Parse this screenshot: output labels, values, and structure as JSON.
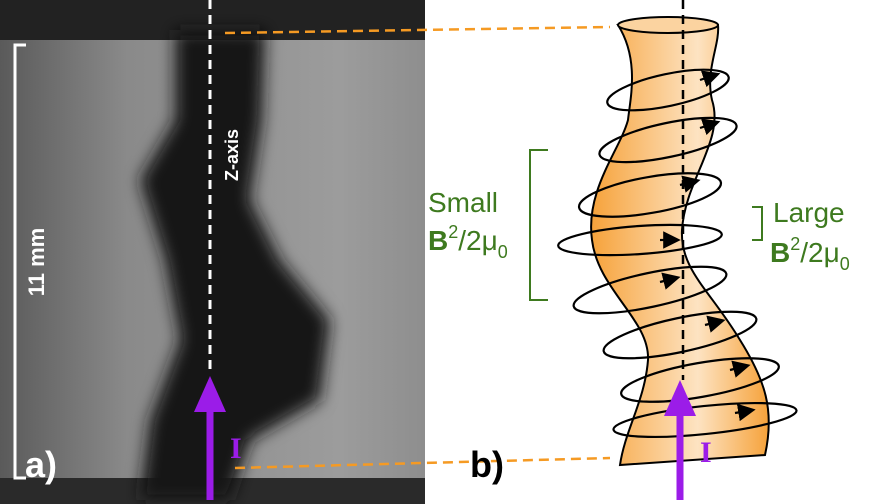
{
  "panel_a": {
    "label": "a)",
    "axis_label": "Z-axis",
    "scale_label": "11 mm",
    "current_label": "I"
  },
  "panel_b": {
    "label": "b)",
    "current_label": "I",
    "small": {
      "word": "Small",
      "symbol": "B",
      "exponent": "2",
      "denominator": "/2μ",
      "subscript": "0"
    },
    "large": {
      "word": "Large",
      "symbol": "B",
      "exponent": "2",
      "denominator": "/2μ",
      "subscript": "0"
    }
  }
}
